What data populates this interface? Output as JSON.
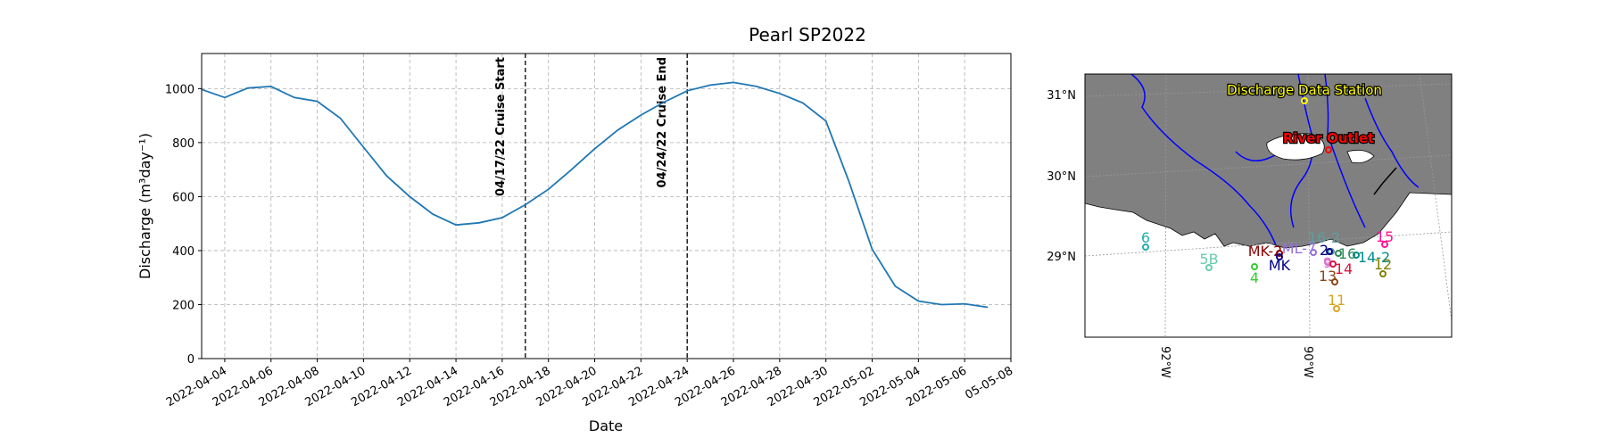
{
  "figure": {
    "title": "Pearl SP2022"
  },
  "chart_data": [
    {
      "type": "line",
      "title": "Pearl SP2022",
      "xlabel": "Date",
      "ylabel": "Discharge (m³day⁻¹)",
      "ylim": [
        0,
        1130
      ],
      "yticks": [
        0,
        200,
        400,
        600,
        800,
        1000
      ],
      "xlim": [
        "2022-04-03",
        "2022-05-08"
      ],
      "xtick_labels": [
        "2022-04-04",
        "2022-04-06",
        "2022-04-08",
        "2022-04-10",
        "2022-04-12",
        "2022-04-14",
        "2022-04-16",
        "2022-04-18",
        "2022-04-20",
        "2022-04-22",
        "2022-04-24",
        "2022-04-26",
        "2022-04-28",
        "2022-04-30",
        "2022-05-02",
        "2022-05-04",
        "2022-05-06",
        "05-05-08"
      ],
      "grid": true,
      "line_color": "#1f77b4",
      "series": [
        {
          "x": [
            "2022-04-03",
            "2022-04-04",
            "2022-04-05",
            "2022-04-06",
            "2022-04-07",
            "2022-04-08",
            "2022-04-09",
            "2022-04-10",
            "2022-04-11",
            "2022-04-12",
            "2022-04-13",
            "2022-04-14",
            "2022-04-15",
            "2022-04-16",
            "2022-04-17",
            "2022-04-18",
            "2022-04-19",
            "2022-04-20",
            "2022-04-21",
            "2022-04-22",
            "2022-04-23",
            "2022-04-24",
            "2022-04-25",
            "2022-04-26",
            "2022-04-27",
            "2022-04-28",
            "2022-04-29",
            "2022-04-30",
            "2022-05-01",
            "2022-05-02",
            "2022-05-03",
            "2022-05-04",
            "2022-05-05",
            "2022-05-06",
            "2022-05-07"
          ],
          "values": [
            997,
            967,
            1002,
            1008,
            967,
            953,
            890,
            783,
            677,
            600,
            535,
            495,
            503,
            522,
            570,
            627,
            700,
            777,
            847,
            902,
            950,
            992,
            1013,
            1023,
            1008,
            982,
            947,
            880,
            655,
            405,
            268,
            213,
            200,
            203,
            190
          ]
        }
      ],
      "annotations": [
        {
          "x": "2022-04-17",
          "label": "04/17/22 Cruise Start"
        },
        {
          "x": "2022-04-24",
          "label": "04/24/22 Cruise End"
        }
      ]
    },
    {
      "type": "map",
      "lat_labels": [
        "31°N",
        "30°N",
        "29°N"
      ],
      "lon_labels": [
        "92°W",
        "90°W"
      ],
      "colors": {
        "land": "#808080",
        "rivers": "#0000ff",
        "gridlines": "#aaaaaa"
      },
      "stations": [
        {
          "label": "Discharge Data Station",
          "color": "#ffff00",
          "outline": "#000000"
        },
        {
          "label": "River Outlet",
          "color": "#ff0000",
          "outline": "#000000"
        },
        {
          "label": "6",
          "color": "#20b2aa"
        },
        {
          "label": "5B",
          "color": "#66cdaa"
        },
        {
          "label": "MK-2",
          "color": "#8b0000"
        },
        {
          "label": "4",
          "color": "#32cd32"
        },
        {
          "label": "MK",
          "color": "#00008b"
        },
        {
          "label": "ML-7",
          "color": "#9370db"
        },
        {
          "label": "16-2",
          "color": "#5f9ea0"
        },
        {
          "label": "2",
          "color": "#000080"
        },
        {
          "label": "16",
          "color": "#2e8b57"
        },
        {
          "label": "14-2",
          "color": "#008b8b"
        },
        {
          "label": "15",
          "color": "#ff1493"
        },
        {
          "label": "9",
          "color": "#da70d6"
        },
        {
          "label": "14",
          "color": "#dc143c"
        },
        {
          "label": "12",
          "color": "#808000"
        },
        {
          "label": "13",
          "color": "#8b4513"
        },
        {
          "label": "11",
          "color": "#daa520"
        }
      ]
    }
  ]
}
